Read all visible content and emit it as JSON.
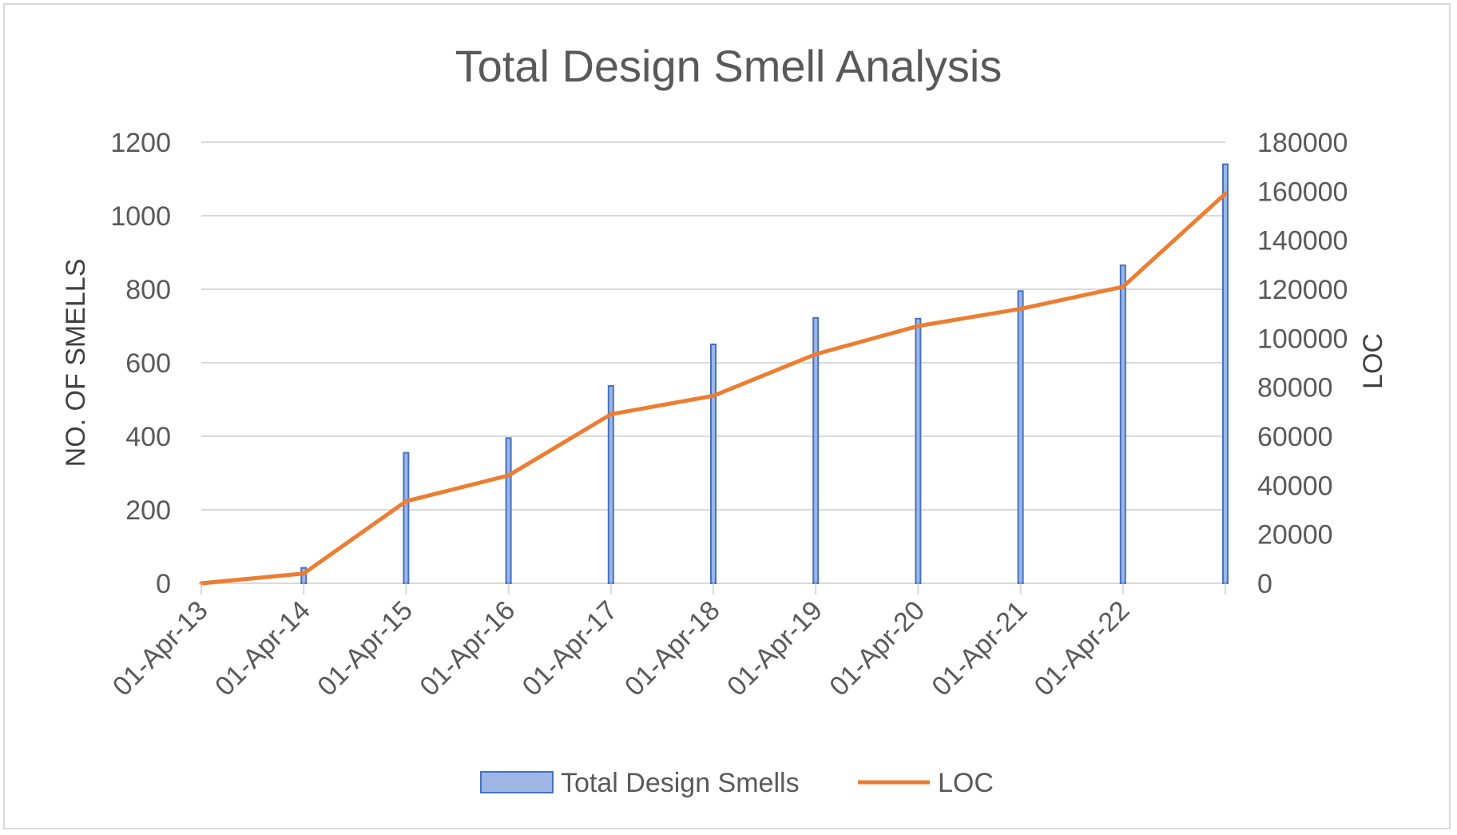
{
  "chart_data": {
    "type": "bar",
    "title": "Total Design Smell Analysis",
    "categories": [
      "01-Apr-13",
      "01-Apr-14",
      "01-Apr-15",
      "01-Apr-16",
      "01-Apr-17",
      "01-Apr-18",
      "01-Apr-19",
      "01-Apr-20",
      "01-Apr-21",
      "01-Apr-22",
      ""
    ],
    "series": [
      {
        "name": "Total Design Smells",
        "type": "bar",
        "axis": "left",
        "color": "#4472c4",
        "values": [
          0,
          42,
          355,
          395,
          537,
          650,
          722,
          720,
          795,
          865,
          1140
        ]
      },
      {
        "name": "LOC",
        "type": "line",
        "axis": "right",
        "color": "#ed7d31",
        "values": [
          0,
          4000,
          33500,
          44000,
          69000,
          76500,
          93500,
          105000,
          112000,
          121000,
          159000
        ]
      }
    ],
    "ylabel": "NO. OF SMELLS",
    "y2label": "LOC",
    "ylim": [
      0,
      1200
    ],
    "y2lim": [
      0,
      180000
    ],
    "yticks": [
      "0",
      "200",
      "400",
      "600",
      "800",
      "1000",
      "1200"
    ],
    "y2ticks": [
      "0",
      "20000",
      "40000",
      "60000",
      "80000",
      "100000",
      "120000",
      "140000",
      "160000",
      "180000"
    ],
    "grid": true,
    "legend": "bottom"
  }
}
